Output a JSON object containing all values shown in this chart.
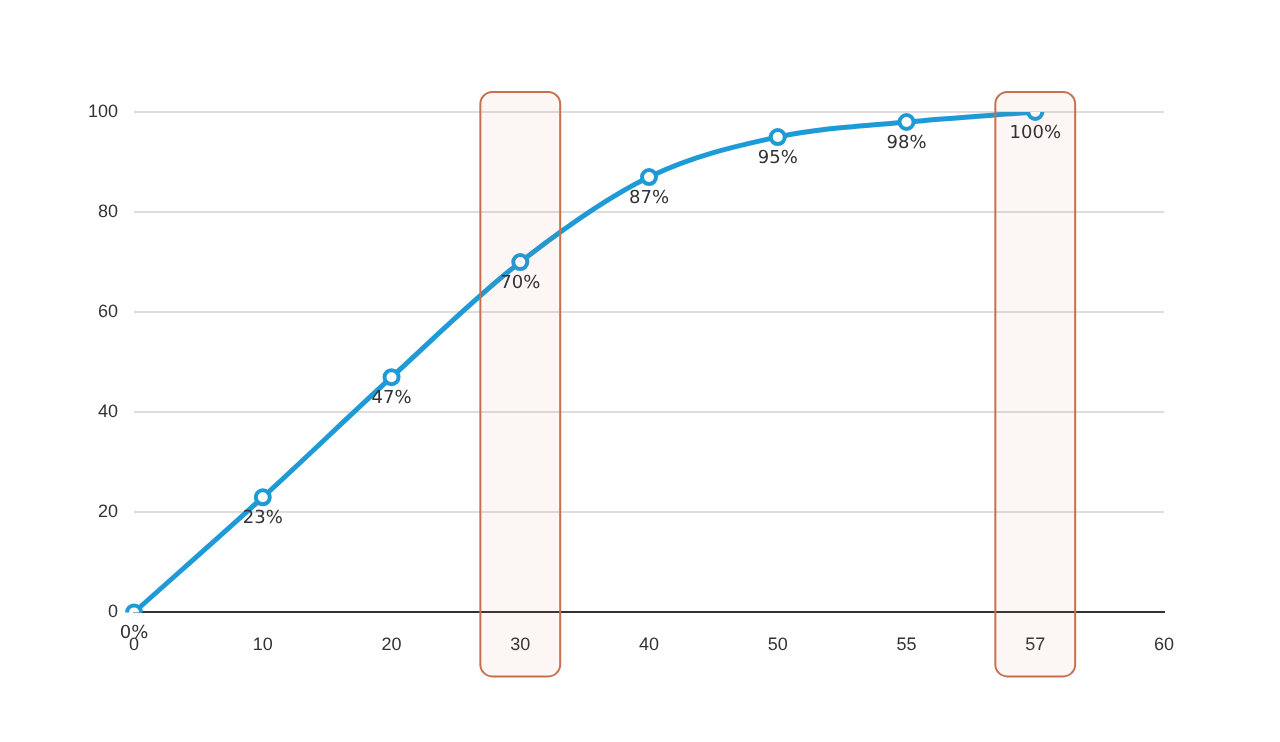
{
  "chart_data": {
    "type": "line",
    "categories": [
      "0",
      "10",
      "20",
      "30",
      "40",
      "50",
      "55",
      "57",
      "60"
    ],
    "series": [
      {
        "color": "#1e9ad6",
        "values": [
          0,
          23,
          47,
          70,
          87,
          95,
          98,
          100,
          null
        ],
        "value_labels": [
          "0%",
          "23%",
          "47%",
          "70%",
          "87%",
          "95%",
          "98%",
          "100%",
          null
        ]
      }
    ],
    "ylim": [
      0,
      100
    ],
    "yticks": [
      0,
      20,
      40,
      60,
      80,
      100
    ],
    "grid": "y",
    "marker": "circle",
    "line_style": "solid",
    "bands": [
      {
        "axis": "x",
        "from": "30",
        "to": "30",
        "color": "#c8704e"
      },
      {
        "axis": "x",
        "from": "57",
        "to": "57",
        "color": "#c8704e"
      }
    ]
  }
}
